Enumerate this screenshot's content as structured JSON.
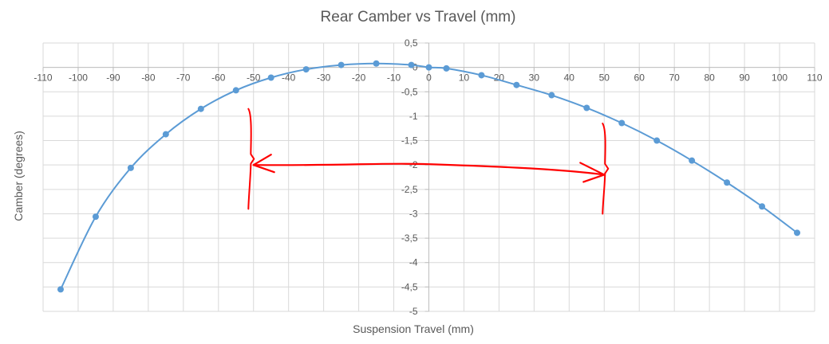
{
  "chart_data": {
    "type": "scatter",
    "title": "Rear Camber vs Travel (mm)",
    "xlabel": "Suspension Travel (mm)",
    "ylabel": "Camber (degrees)",
    "xlim": [
      -110,
      110
    ],
    "ylim": [
      -5,
      0.5
    ],
    "x_ticks": [
      -110,
      -100,
      -90,
      -80,
      -70,
      -60,
      -50,
      -40,
      -30,
      -20,
      -10,
      0,
      10,
      20,
      30,
      40,
      50,
      60,
      70,
      80,
      90,
      100,
      110
    ],
    "y_ticks": [
      0.5,
      0,
      -0.5,
      -1,
      -1.5,
      -2,
      -2.5,
      -3,
      -3.5,
      -4,
      -4.5,
      -5
    ],
    "x_tick_labels": [
      "-110",
      "-100",
      "-90",
      "-80",
      "-70",
      "-60",
      "-50",
      "-40",
      "-30",
      "-20",
      "-10",
      "0",
      "10",
      "20",
      "30",
      "40",
      "50",
      "60",
      "70",
      "80",
      "90",
      "100",
      "110"
    ],
    "y_tick_labels": [
      "0,5",
      "0",
      "-0,5",
      "-1",
      "-1,5",
      "-2",
      "-2,5",
      "-3",
      "-3,5",
      "-4",
      "-4,5",
      "-5"
    ],
    "grid": true,
    "smooth_line": true,
    "series": [
      {
        "color": "#5b9bd5",
        "x": [
          -105,
          -95,
          -85,
          -75,
          -65,
          -55,
          -45,
          -35,
          -25,
          -15,
          -5,
          0,
          5,
          15,
          25,
          35,
          45,
          55,
          65,
          75,
          85,
          95,
          105
        ],
        "y": [
          -4.55,
          -3.06,
          -2.06,
          -1.37,
          -0.85,
          -0.47,
          -0.21,
          -0.04,
          0.05,
          0.08,
          0.05,
          0.0,
          -0.02,
          -0.16,
          -0.36,
          -0.57,
          -0.83,
          -1.14,
          -1.5,
          -1.91,
          -2.36,
          -2.85,
          -3.39
        ]
      }
    ],
    "annotations": {
      "color": "#ff0000",
      "double_arrow": {
        "x1": -50,
        "y1": -2.0,
        "x2": 50,
        "y2": -2.2
      },
      "left_brace": {
        "x": -51,
        "y_top": -0.85,
        "y_bottom": -2.9
      },
      "right_brace": {
        "x": 50,
        "y_top": -1.15,
        "y_bottom": -3.0
      }
    }
  }
}
